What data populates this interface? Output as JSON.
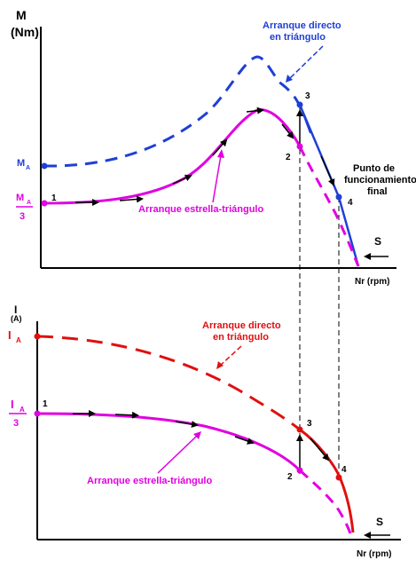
{
  "colors": {
    "blue": "#1f3fd6",
    "magenta": "#e000e0",
    "red": "#e01010",
    "axis": "#000000",
    "dash_guide": "#000000"
  },
  "torque": {
    "y_axis_label_1": "M",
    "y_axis_label_2": "(Nm)",
    "x_axis_label": "Nr (rpm)",
    "ma_label": "M",
    "ma_sub": "A",
    "ma3_top": "M",
    "ma3_sub": "A",
    "ma3_bottom": "3",
    "label_direct_1": "Arranque directo",
    "label_direct_2": "en triángulo",
    "label_star": "Arranque estrella-triángulo",
    "op_point_1": "Punto de",
    "op_point_2": "funcionamiento",
    "op_point_3": "final",
    "s_label": "S",
    "pt1": "1",
    "pt2": "2",
    "pt3": "3",
    "pt4": "4"
  },
  "current": {
    "y_axis_label_1": "I",
    "y_axis_label_2": "(A)",
    "x_axis_label": "Nr (rpm)",
    "ia_label": "I",
    "ia_sub": "A",
    "ia3_top": "I",
    "ia3_sub": "A",
    "ia3_bottom": "3",
    "label_direct_1": "Arranque directo",
    "label_direct_2": "en triángulo",
    "label_star": "Arranque estrella-triángulo",
    "s_label": "S",
    "pt1": "1",
    "pt2": "2",
    "pt3": "3",
    "pt4": "4"
  }
}
